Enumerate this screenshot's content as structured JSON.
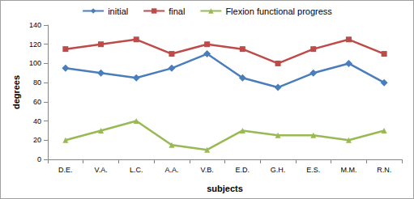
{
  "chart_data": {
    "type": "line",
    "x_label": "subjects",
    "y_label": "degrees",
    "categories": [
      "D.E.",
      "V.A.",
      "L.C.",
      "A.A.",
      "V.B.",
      "E.D.",
      "G.H.",
      "E.S.",
      "M.M.",
      "R.N."
    ],
    "series": [
      {
        "name": "initial",
        "color": "#4a7ebb",
        "marker": "diamond",
        "values": [
          95,
          90,
          85,
          95,
          110,
          85,
          75,
          90,
          100,
          80
        ]
      },
      {
        "name": "final",
        "color": "#be4b48",
        "marker": "square",
        "values": [
          115,
          120,
          125,
          110,
          120,
          115,
          100,
          115,
          125,
          110
        ]
      },
      {
        "name": "Flexion functional progress",
        "color": "#98b954",
        "marker": "triangle",
        "values": [
          20,
          30,
          40,
          15,
          10,
          30,
          25,
          25,
          20,
          30
        ]
      }
    ],
    "ylim": [
      0,
      140
    ],
    "yticks": [
      0,
      20,
      40,
      60,
      80,
      100,
      120,
      140
    ],
    "grid": false,
    "legend": "top"
  }
}
